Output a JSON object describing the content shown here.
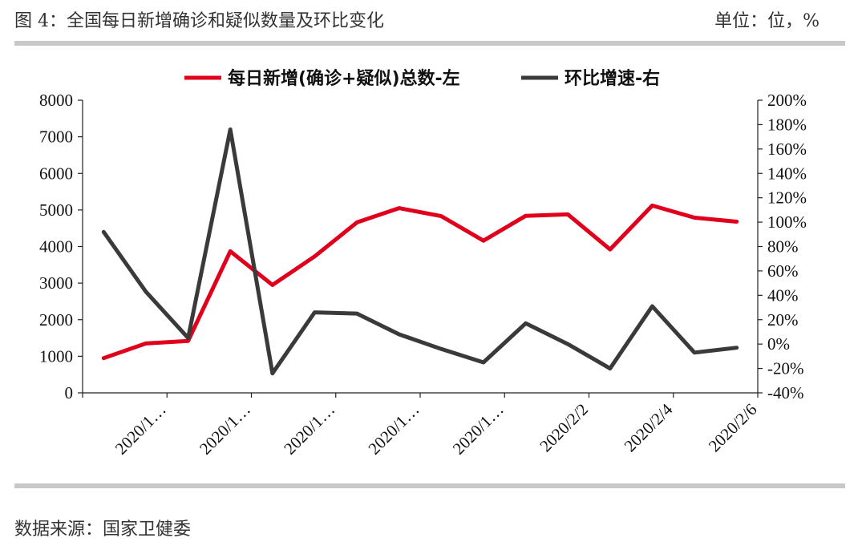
{
  "header": {
    "title": "图 4：全国每日新增确诊和疑似数量及环比变化",
    "unit": "单位：位，%"
  },
  "footer": {
    "source": "数据来源：国家卫健委"
  },
  "colors": {
    "series_left": "#e0001b",
    "series_right": "#3a3a3a",
    "rule": "#c8c8c8"
  },
  "chart_data": {
    "type": "line",
    "x_tick_labels": [
      "2020/1…",
      "2020/1…",
      "2020/1…",
      "2020/1…",
      "2020/1…",
      "2020/2/2",
      "2020/2/4",
      "2020/2/6"
    ],
    "left_axis": {
      "ylim": [
        0,
        8000
      ],
      "ticks": [
        "0",
        "1000",
        "2000",
        "3000",
        "4000",
        "5000",
        "6000",
        "7000",
        "8000"
      ]
    },
    "right_axis": {
      "ylim": [
        -40,
        200
      ],
      "ticks": [
        "-40%",
        "-20%",
        "0%",
        "20%",
        "40%",
        "60%",
        "80%",
        "100%",
        "120%",
        "140%",
        "160%",
        "180%",
        "200%"
      ]
    },
    "legend_position": "top",
    "series": [
      {
        "name": "每日新增(确诊+疑似)总数-左",
        "axis": "left",
        "values": [
          950,
          1350,
          1420,
          3870,
          2950,
          3730,
          4660,
          5050,
          4830,
          4160,
          4840,
          4880,
          3920,
          5120,
          4790,
          4680
        ]
      },
      {
        "name": "环比增速-右",
        "axis": "right",
        "values": [
          92,
          43,
          5,
          176,
          -24,
          26,
          25,
          8,
          -4,
          -15,
          17,
          0,
          -20,
          31,
          -7,
          -3
        ]
      }
    ]
  }
}
